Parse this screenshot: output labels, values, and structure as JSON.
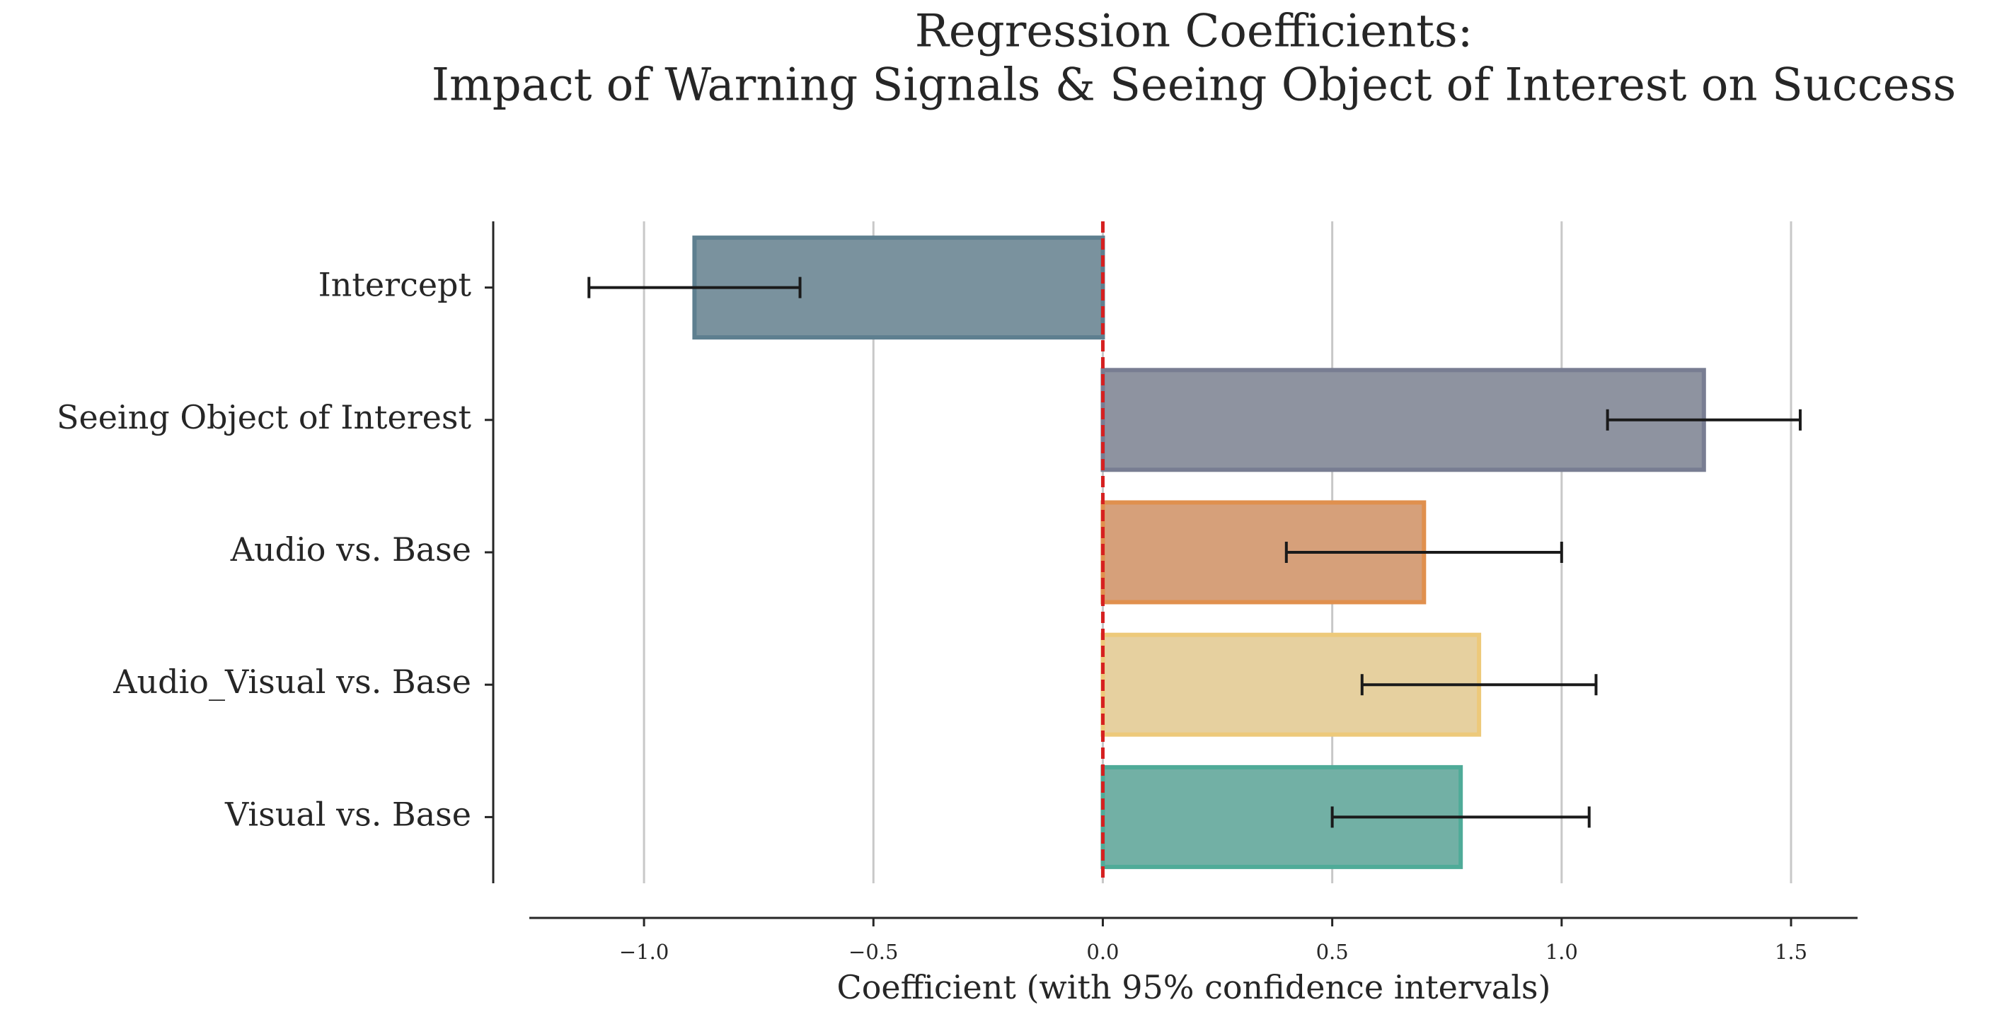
{
  "chart_data": {
    "type": "hbar",
    "title": [
      "Regression Coefficients:",
      "Impact of Warning Signals & Seeing Object of Interest on Success"
    ],
    "xlabel": "Coefficient (with 95% confidence intervals)",
    "categories": [
      "Intercept",
      "Seeing Object of Interest",
      "Audio vs. Base",
      "Audio_Visual vs. Base",
      "Visual vs. Base"
    ],
    "values": [
      -0.89,
      1.31,
      0.7,
      0.82,
      0.78
    ],
    "errors": [
      0.23,
      0.21,
      0.3,
      0.255,
      0.28
    ],
    "colors": [
      "#7a929e",
      "#8e93a0",
      "#d6a07a",
      "#e6d09f",
      "#72b0a5"
    ],
    "edge_colors": [
      "#5e7f8f",
      "#787d92",
      "#e0904e",
      "#edc97a",
      "#4fab98"
    ],
    "xlim": [
      -1.25,
      1.645
    ],
    "xticks": [
      {
        "value": -1.0,
        "label": "−1.0"
      },
      {
        "value": -0.5,
        "label": "−0.5"
      },
      {
        "value": 0.0,
        "label": "0.0"
      },
      0.5,
      {
        "value": 1.0,
        "label": "1.0"
      },
      1.5
    ],
    "grid": true,
    "reference_line": {
      "value": 0,
      "color": "#d62020"
    }
  }
}
